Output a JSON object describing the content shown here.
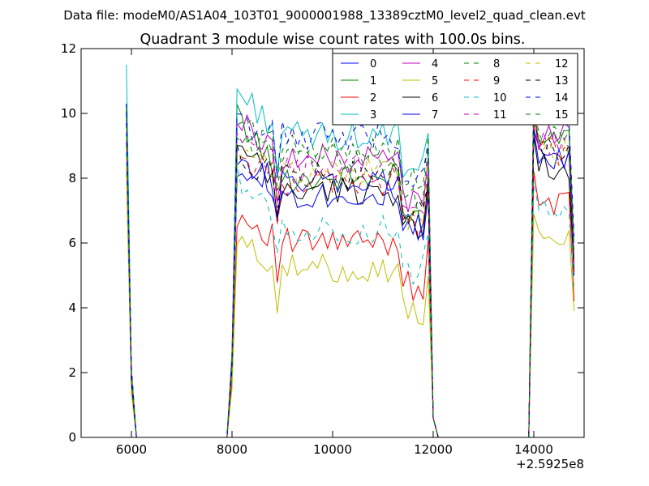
{
  "suptitle": "Data file: modeM0/AS1A04_103T01_9000001988_13389cztM0_level2_quad_clean.evt",
  "chart_data": {
    "type": "line",
    "title": "Quadrant 3 module wise count rates with 100.0s bins.",
    "xlabel": "",
    "ylabel": "",
    "x_offset_label": "+2.5925e8",
    "xlim": [
      5000,
      15000
    ],
    "ylim": [
      0,
      12
    ],
    "x_ticks": [
      6000,
      8000,
      10000,
      12000,
      14000
    ],
    "y_ticks": [
      0,
      2,
      4,
      6,
      8,
      10,
      12
    ],
    "grid": false,
    "legend": {
      "placement": "top-right",
      "columns": 4
    },
    "segments": [
      {
        "x_start": 8100,
        "x_end": 11900,
        "step": 100
      },
      {
        "x_start": 14000,
        "x_end": 14800,
        "step": 100
      }
    ],
    "series": [
      {
        "name": "0",
        "color": "#0000ff",
        "dash": "solid",
        "peak": 10.3,
        "level_a": 8.5,
        "level_b": 7.8,
        "level_c": 8.6,
        "end": 5.0
      },
      {
        "name": "1",
        "color": "#008000",
        "dash": "solid",
        "peak": 10.0,
        "level_a": 9.9,
        "level_b": 8.0,
        "level_c": 9.2,
        "end": 5.3
      },
      {
        "name": "2",
        "color": "#ff0000",
        "dash": "solid",
        "peak": 9.2,
        "level_a": 6.9,
        "level_b": 6.0,
        "level_c": 7.3,
        "end": 4.2
      },
      {
        "name": "3",
        "color": "#00bfbf",
        "dash": "solid",
        "peak": 11.5,
        "level_a": 10.7,
        "level_b": 9.3,
        "level_c": 10.0,
        "end": 6.0
      },
      {
        "name": "4",
        "color": "#bf00bf",
        "dash": "solid",
        "peak": 9.9,
        "level_a": 9.8,
        "level_b": 8.6,
        "level_c": 9.3,
        "end": 5.5
      },
      {
        "name": "5",
        "color": "#bfbf00",
        "dash": "solid",
        "peak": 8.3,
        "level_a": 6.0,
        "level_b": 5.2,
        "level_c": 6.0,
        "end": 3.9
      },
      {
        "name": "6",
        "color": "#000000",
        "dash": "solid",
        "peak": 10.1,
        "level_a": 8.9,
        "level_b": 7.6,
        "level_c": 8.4,
        "end": 5.1
      },
      {
        "name": "7",
        "color": "#0000ff",
        "dash": "solid",
        "peak": 10.0,
        "level_a": 8.7,
        "level_b": 7.5,
        "level_c": 8.6,
        "end": 5.2
      },
      {
        "name": "8",
        "color": "#008000",
        "dash": "dashed",
        "peak": 10.0,
        "level_a": 9.8,
        "level_b": 8.9,
        "level_c": 9.3,
        "end": 5.5
      },
      {
        "name": "9",
        "color": "#ff0000",
        "dash": "dashed",
        "peak": 9.0,
        "level_a": 8.7,
        "level_b": 7.9,
        "level_c": 8.8,
        "end": 5.1
      },
      {
        "name": "10",
        "color": "#00bfbf",
        "dash": "dashed",
        "peak": 8.8,
        "level_a": 8.1,
        "level_b": 6.4,
        "level_c": 7.0,
        "end": 4.6
      },
      {
        "name": "11",
        "color": "#bf00bf",
        "dash": "dashed",
        "peak": 9.8,
        "level_a": 9.1,
        "level_b": 8.3,
        "level_c": 9.1,
        "end": 5.3
      },
      {
        "name": "12",
        "color": "#bfbf00",
        "dash": "dashed",
        "peak": 9.6,
        "level_a": 8.7,
        "level_b": 8.2,
        "level_c": 8.9,
        "end": 5.2
      },
      {
        "name": "13",
        "color": "#000000",
        "dash": "dashed",
        "peak": 9.7,
        "level_a": 8.6,
        "level_b": 8.1,
        "level_c": 8.8,
        "end": 5.0
      },
      {
        "name": "14",
        "color": "#0000ff",
        "dash": "dashed",
        "peak": 10.3,
        "level_a": 9.7,
        "level_b": 9.3,
        "level_c": 10.2,
        "end": 6.2
      },
      {
        "name": "15",
        "color": "#008000",
        "dash": "dashed",
        "peak": 10.2,
        "level_a": 9.3,
        "level_b": 8.6,
        "level_c": 9.8,
        "end": 5.6
      }
    ]
  }
}
